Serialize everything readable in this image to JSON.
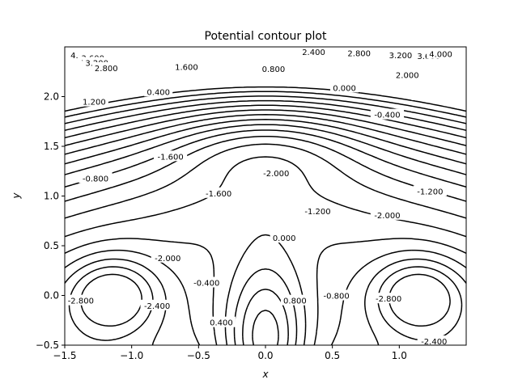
{
  "chart_data": {
    "type": "contour",
    "title": "Potential contour plot",
    "xlabel": "x",
    "ylabel": "y",
    "xlim": [
      -1.5,
      1.5
    ],
    "ylim": [
      -0.5,
      2.5
    ],
    "xticks": [
      -1.5,
      -1.0,
      -0.5,
      0.0,
      0.5,
      1.0
    ],
    "xtick_labels": [
      "−1.5",
      "−1.0",
      "−0.5",
      "0.0",
      "0.5",
      "1.0"
    ],
    "yticks": [
      -0.5,
      0.0,
      0.5,
      1.0,
      1.5,
      2.0
    ],
    "ytick_labels": [
      "−0.5",
      "0.0",
      "0.5",
      "1.0",
      "1.5",
      "2.0"
    ],
    "line_color": "#000000",
    "negative_levels_dashed": true,
    "grid": false,
    "levels": [
      -2.8,
      -2.4,
      -2.0,
      -1.6,
      -1.2,
      -0.8,
      -0.4,
      0.0,
      0.4,
      0.8,
      1.2,
      1.6,
      2.0,
      2.4,
      2.8,
      3.2,
      3.6,
      4.0
    ],
    "contour_labels": [
      {
        "text": "4.000",
        "x": -1.37,
        "y": 2.42
      },
      {
        "text": "3.600",
        "x": -1.29,
        "y": 2.39
      },
      {
        "text": "3.200",
        "x": -1.26,
        "y": 2.34
      },
      {
        "text": "2.800",
        "x": -1.19,
        "y": 2.29
      },
      {
        "text": "1.600",
        "x": -0.59,
        "y": 2.3
      },
      {
        "text": "0.800",
        "x": 0.06,
        "y": 2.28
      },
      {
        "text": "2.400",
        "x": 0.36,
        "y": 2.45
      },
      {
        "text": "2.800",
        "x": 0.7,
        "y": 2.44
      },
      {
        "text": "3.200",
        "x": 1.01,
        "y": 2.42
      },
      {
        "text": "3.600",
        "x": 1.22,
        "y": 2.41
      },
      {
        "text": "4.000",
        "x": 1.31,
        "y": 2.43
      },
      {
        "text": "2.000",
        "x": 1.06,
        "y": 2.22
      },
      {
        "text": "0.000",
        "x": 0.59,
        "y": 2.09
      },
      {
        "text": "0.400",
        "x": -0.8,
        "y": 2.05
      },
      {
        "text": "1.200",
        "x": -1.28,
        "y": 1.95
      },
      {
        "text": "-0.400",
        "x": 0.91,
        "y": 1.82
      },
      {
        "text": "-1.600",
        "x": -0.71,
        "y": 1.4
      },
      {
        "text": "-0.800",
        "x": -1.27,
        "y": 1.18
      },
      {
        "text": "-2.000",
        "x": 0.08,
        "y": 1.23
      },
      {
        "text": "-1.200",
        "x": 1.23,
        "y": 1.05
      },
      {
        "text": "-1.600",
        "x": -0.35,
        "y": 1.03
      },
      {
        "text": "-1.200",
        "x": 0.39,
        "y": 0.85
      },
      {
        "text": "-2.000",
        "x": 0.91,
        "y": 0.81
      },
      {
        "text": "-2.000",
        "x": -0.73,
        "y": 0.38
      },
      {
        "text": "0.000",
        "x": 0.14,
        "y": 0.58
      },
      {
        "text": "-0.400",
        "x": -0.44,
        "y": 0.13
      },
      {
        "text": "-2.800",
        "x": -1.38,
        "y": -0.05
      },
      {
        "text": "-2.400",
        "x": -0.81,
        "y": -0.1
      },
      {
        "text": "0.800",
        "x": 0.22,
        "y": -0.05
      },
      {
        "text": "-0.800",
        "x": 0.53,
        "y": 0.0
      },
      {
        "text": "-2.800",
        "x": 0.92,
        "y": -0.03
      },
      {
        "text": "0.400",
        "x": -0.33,
        "y": -0.27
      },
      {
        "text": "-2.400",
        "x": 1.26,
        "y": -0.46
      }
    ]
  }
}
